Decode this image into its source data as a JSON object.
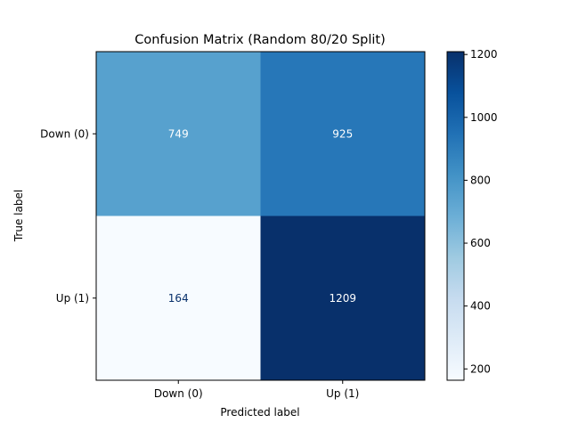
{
  "chart_data": {
    "type": "heatmap",
    "title": "Confusion Matrix (Random 80/20 Split)",
    "xlabel": "Predicted label",
    "ylabel": "True label",
    "x_categories": [
      "Down (0)",
      "Up (1)"
    ],
    "y_categories": [
      "Down (0)",
      "Up (1)"
    ],
    "matrix": [
      [
        749,
        925
      ],
      [
        164,
        1209
      ]
    ],
    "colormap": "Blues",
    "colorbar": {
      "range": [
        164,
        1209
      ],
      "ticks": [
        200,
        400,
        600,
        800,
        1000,
        1200
      ],
      "position": "right"
    },
    "cell_label_colors": {
      "light": "#ffffff",
      "dark": "#08306b"
    }
  }
}
